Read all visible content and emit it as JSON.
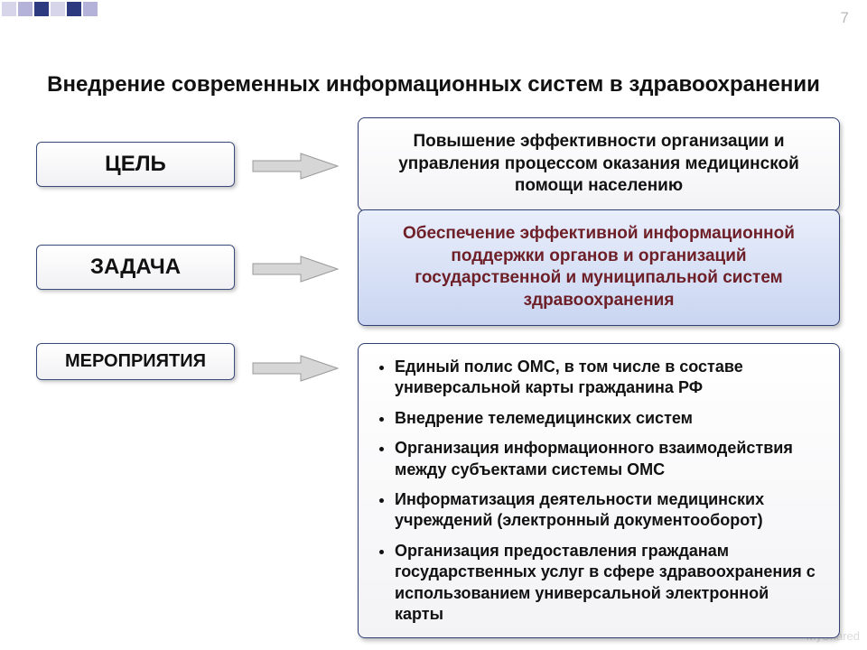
{
  "page_number": "7",
  "watermark": "MyShared",
  "title": "Внедрение современных информационных систем в здравоохранении",
  "deco_colors": [
    "#d7d5ea",
    "#b5b2da",
    "#2e3a80",
    "#d7d5ea",
    "#2e3a80",
    "#b5b2da"
  ],
  "arrow_fill": "#d6d6d6",
  "arrow_stroke": "#9a9a9a",
  "rows": [
    {
      "label": "ЦЕЛЬ",
      "label_class": "",
      "content_class": "content-center bg-white",
      "text": "Повышение эффективности организации и управления процессом оказания медицинской помощи населению"
    },
    {
      "label": "ЗАДАЧА",
      "label_class": "",
      "content_class": "content-center bg-blue",
      "text": "Обеспечение эффективной информационной поддержки органов и организаций государственной и муниципальной систем здравоохранения"
    },
    {
      "label": "МЕРОПРИЯТИЯ",
      "label_class": "small",
      "content_class": "bg-white",
      "bullets": [
        "Единый полис ОМС, в том числе в составе универсальной карты гражданина РФ",
        "Внедрение телемедицинских систем",
        "Организация информационного взаимодействия между субъектами системы ОМС",
        "Информатизация деятельности медицинских учреждений (электронный документооборот)",
        "Организация предоставления гражданам государственных услуг в сфере здравоохранения с использованием универсальной электронной карты"
      ]
    }
  ]
}
